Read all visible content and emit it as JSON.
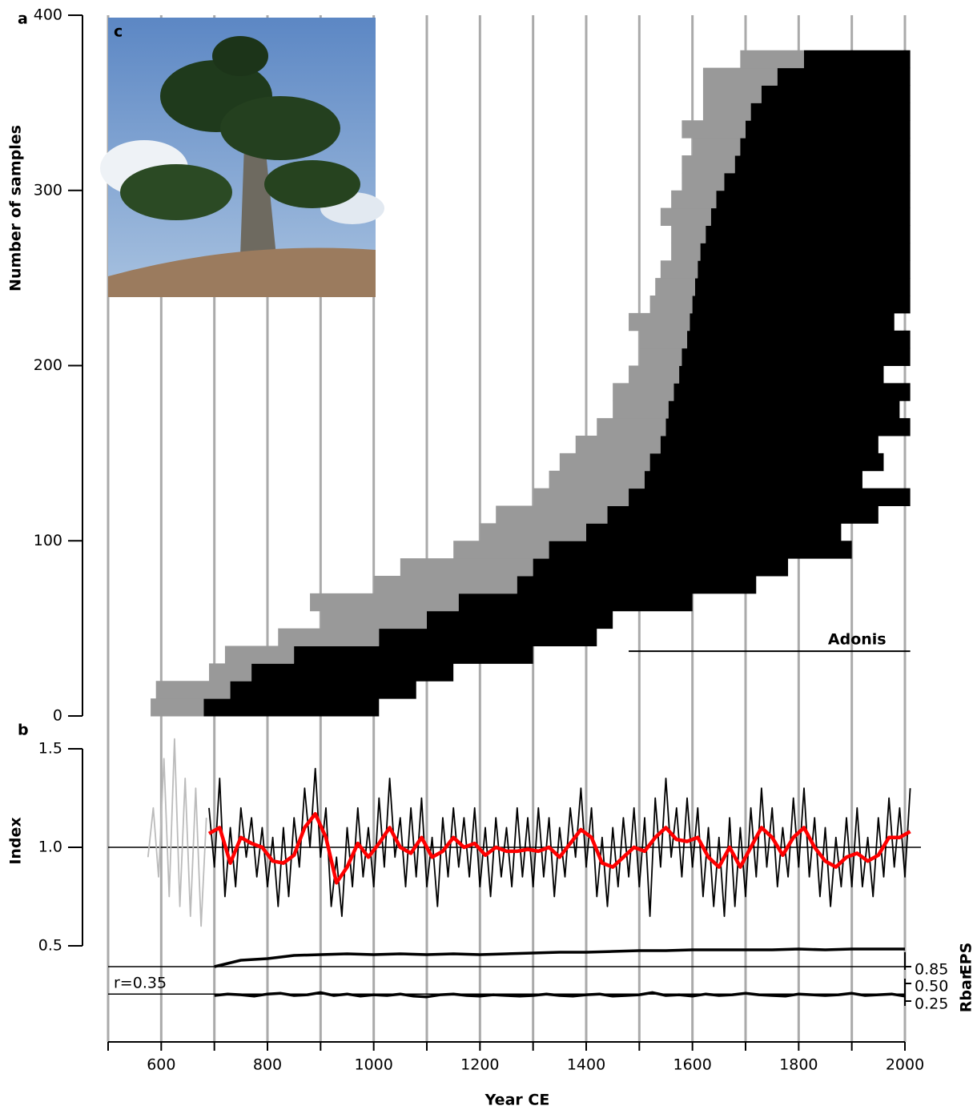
{
  "chart_data": [
    {
      "type": "span",
      "panel_label": "a",
      "ylabel": "Number of samples",
      "ylim": [
        0,
        400
      ],
      "yticks": [
        0,
        100,
        200,
        300,
        400
      ],
      "xlim": [
        500,
        2000
      ],
      "xgrid": [
        500,
        600,
        700,
        800,
        900,
        1000,
        1100,
        1200,
        1300,
        1400,
        1500,
        1600,
        1700,
        1800,
        1900,
        2000
      ],
      "colors": {
        "pith": "#999999",
        "measured": "#000000"
      },
      "rank": [
        5,
        15,
        25,
        35,
        45,
        55,
        65,
        75,
        85,
        95,
        105,
        115,
        125,
        135,
        145,
        155,
        165,
        175,
        185,
        195,
        205,
        215,
        225,
        235,
        245,
        255,
        265,
        275,
        285,
        295,
        305,
        315,
        325,
        335,
        345,
        355,
        365,
        375
      ],
      "gray_start": [
        580,
        590,
        690,
        720,
        820,
        900,
        880,
        1000,
        1050,
        1150,
        1200,
        1230,
        1300,
        1330,
        1350,
        1380,
        1420,
        1450,
        1450,
        1480,
        1500,
        1500,
        1480,
        1520,
        1530,
        1540,
        1560,
        1560,
        1540,
        1560,
        1580,
        1580,
        1600,
        1580,
        1620,
        1620,
        1620,
        1690
      ],
      "black_start": [
        680,
        730,
        770,
        850,
        1010,
        1100,
        1160,
        1270,
        1300,
        1330,
        1400,
        1440,
        1480,
        1510,
        1520,
        1540,
        1550,
        1555,
        1565,
        1575,
        1580,
        1590,
        1595,
        1600,
        1605,
        1610,
        1615,
        1625,
        1635,
        1645,
        1660,
        1680,
        1690,
        1700,
        1710,
        1730,
        1760,
        1810
      ],
      "end": [
        1010,
        1080,
        1150,
        1300,
        1420,
        1450,
        1600,
        1720,
        1780,
        1900,
        1880,
        1950,
        2010,
        1920,
        1960,
        1950,
        2010,
        1990,
        2010,
        1960,
        2010,
        2010,
        1980,
        2010,
        2010,
        2010,
        2010,
        2010,
        2010,
        2010,
        2010,
        2010,
        2010,
        2010,
        2010,
        2010,
        2010,
        2010
      ],
      "annotations": [
        {
          "text": "Adonis",
          "rank": 37,
          "start": 1480,
          "end": 2010
        }
      ],
      "inset_label": "c"
    },
    {
      "type": "line",
      "panel_label": "b",
      "ylabel": "Index",
      "ylim": [
        0.5,
        1.5
      ],
      "yticks": [
        0.5,
        {
          "value": 1,
          "label": "1.0"
        },
        1.5
      ],
      "reference": 1,
      "xlim": [
        500,
        2000
      ],
      "series": [
        {
          "color": "#bbbbbb",
          "x": [
            575,
            585,
            595,
            605,
            615,
            625,
            635,
            645,
            655,
            665,
            675,
            685
          ],
          "values": [
            0.95,
            1.2,
            0.85,
            1.45,
            0.75,
            1.55,
            0.7,
            1.35,
            0.65,
            1.3,
            0.6,
            1.15
          ]
        },
        {
          "color": "#000000",
          "x": [
            690,
            700,
            710,
            720,
            730,
            740,
            750,
            760,
            770,
            780,
            790,
            800,
            810,
            820,
            830,
            840,
            850,
            860,
            870,
            880,
            890,
            900,
            910,
            920,
            930,
            940,
            950,
            960,
            970,
            980,
            990,
            1000,
            1010,
            1020,
            1030,
            1040,
            1050,
            1060,
            1070,
            1080,
            1090,
            1100,
            1110,
            1120,
            1130,
            1140,
            1150,
            1160,
            1170,
            1180,
            1190,
            1200,
            1210,
            1220,
            1230,
            1240,
            1250,
            1260,
            1270,
            1280,
            1290,
            1300,
            1310,
            1320,
            1330,
            1340,
            1350,
            1360,
            1370,
            1380,
            1390,
            1400,
            1410,
            1420,
            1430,
            1440,
            1450,
            1460,
            1470,
            1480,
            1490,
            1500,
            1510,
            1520,
            1530,
            1540,
            1550,
            1560,
            1570,
            1580,
            1590,
            1600,
            1610,
            1620,
            1630,
            1640,
            1650,
            1660,
            1670,
            1680,
            1690,
            1700,
            1710,
            1720,
            1730,
            1740,
            1750,
            1760,
            1770,
            1780,
            1790,
            1800,
            1810,
            1820,
            1830,
            1840,
            1850,
            1860,
            1870,
            1880,
            1890,
            1900,
            1910,
            1920,
            1930,
            1940,
            1950,
            1960,
            1970,
            1980,
            1990,
            2000,
            2010
          ],
          "values": [
            1.2,
            0.9,
            1.35,
            0.75,
            1.1,
            0.8,
            1.2,
            0.95,
            1.15,
            0.85,
            1.1,
            0.8,
            1.05,
            0.7,
            1.1,
            0.75,
            1.15,
            0.9,
            1.3,
            1.0,
            1.4,
            0.95,
            1.2,
            0.7,
            0.95,
            0.65,
            1.1,
            0.8,
            1.2,
            0.85,
            1.1,
            0.8,
            1.25,
            0.9,
            1.35,
            0.95,
            1.15,
            0.8,
            1.2,
            0.85,
            1.25,
            0.8,
            1.05,
            0.7,
            1.15,
            0.85,
            1.2,
            0.9,
            1.15,
            0.85,
            1.2,
            0.8,
            1.1,
            0.75,
            1.15,
            0.85,
            1.1,
            0.8,
            1.2,
            0.85,
            1.15,
            0.8,
            1.2,
            0.85,
            1.15,
            0.75,
            1.1,
            0.85,
            1.2,
            0.95,
            1.3,
            0.9,
            1.2,
            0.75,
            1.05,
            0.7,
            1.1,
            0.8,
            1.15,
            0.85,
            1.2,
            0.8,
            1.15,
            0.65,
            1.25,
            0.9,
            1.35,
            0.95,
            1.2,
            0.85,
            1.25,
            0.9,
            1.2,
            0.75,
            1.1,
            0.7,
            1.05,
            0.65,
            1.15,
            0.7,
            1.1,
            0.75,
            1.2,
            0.85,
            1.3,
            0.9,
            1.2,
            0.8,
            1.1,
            0.85,
            1.25,
            0.9,
            1.3,
            0.85,
            1.15,
            0.75,
            1.1,
            0.7,
            1.05,
            0.8,
            1.15,
            0.8,
            1.2,
            0.8,
            1.05,
            0.75,
            1.15,
            0.85,
            1.25,
            0.9,
            1.2,
            0.85,
            1.3
          ]
        },
        {
          "color": "#ff0000",
          "x": [
            690,
            710,
            730,
            750,
            770,
            790,
            810,
            830,
            850,
            870,
            890,
            910,
            930,
            950,
            970,
            990,
            1010,
            1030,
            1050,
            1070,
            1090,
            1110,
            1130,
            1150,
            1170,
            1190,
            1210,
            1230,
            1250,
            1270,
            1290,
            1310,
            1330,
            1350,
            1370,
            1390,
            1410,
            1430,
            1450,
            1470,
            1490,
            1510,
            1530,
            1550,
            1570,
            1590,
            1610,
            1630,
            1650,
            1670,
            1690,
            1710,
            1730,
            1750,
            1770,
            1790,
            1810,
            1830,
            1850,
            1870,
            1890,
            1910,
            1930,
            1950,
            1970,
            1990,
            2010
          ],
          "values": [
            1.07,
            1.1,
            0.92,
            1.05,
            1.02,
            1.0,
            0.93,
            0.92,
            0.96,
            1.1,
            1.17,
            1.05,
            0.82,
            0.9,
            1.02,
            0.95,
            1.02,
            1.1,
            1.0,
            0.97,
            1.05,
            0.95,
            0.98,
            1.05,
            1.0,
            1.02,
            0.96,
            1.0,
            0.98,
            0.98,
            0.99,
            0.98,
            1.0,
            0.95,
            1.02,
            1.09,
            1.05,
            0.92,
            0.9,
            0.95,
            1.0,
            0.98,
            1.05,
            1.1,
            1.04,
            1.03,
            1.05,
            0.95,
            0.9,
            1.0,
            0.9,
            1.0,
            1.1,
            1.05,
            0.96,
            1.05,
            1.1,
            1.0,
            0.93,
            0.9,
            0.95,
            0.97,
            0.93,
            0.96,
            1.05,
            1.05,
            1.08
          ]
        }
      ]
    },
    {
      "type": "line",
      "ylabel": "EPS",
      "ylim": [
        0.8,
        1.0
      ],
      "yticks": [
        0.85
      ],
      "reference": 0.85,
      "xlim": [
        500,
        2000
      ],
      "series": [
        {
          "color": "#000000",
          "x": [
            700,
            750,
            800,
            850,
            900,
            950,
            1000,
            1050,
            1100,
            1150,
            1200,
            1250,
            1300,
            1350,
            1400,
            1450,
            1500,
            1550,
            1600,
            1650,
            1700,
            1750,
            1800,
            1850,
            1900,
            1950,
            2000
          ],
          "values": [
            0.85,
            0.89,
            0.9,
            0.92,
            0.925,
            0.93,
            0.925,
            0.93,
            0.925,
            0.93,
            0.925,
            0.93,
            0.935,
            0.94,
            0.94,
            0.945,
            0.95,
            0.95,
            0.955,
            0.955,
            0.955,
            0.955,
            0.96,
            0.955,
            0.96,
            0.96,
            0.96
          ]
        }
      ]
    },
    {
      "type": "line",
      "ylabel": "Rbar",
      "ylim": [
        0.25,
        0.5
      ],
      "yticks": [
        0.25,
        {
          "value": 0.5,
          "label": "0.50"
        }
      ],
      "reference": 0.35,
      "reference_label": "r=0.35",
      "xlim": [
        500,
        2000
      ],
      "xlabel": "Year CE",
      "xticks": [
        600,
        800,
        1000,
        1200,
        1400,
        1600,
        1800,
        2000
      ],
      "xminor": [
        500,
        600,
        700,
        800,
        900,
        1000,
        1100,
        1200,
        1300,
        1400,
        1500,
        1600,
        1700,
        1800,
        1900,
        2000
      ],
      "series": [
        {
          "color": "#000000",
          "x": [
            700,
            725,
            750,
            775,
            800,
            825,
            850,
            875,
            900,
            925,
            950,
            975,
            1000,
            1025,
            1050,
            1075,
            1100,
            1125,
            1150,
            1175,
            1200,
            1225,
            1250,
            1275,
            1300,
            1325,
            1350,
            1375,
            1400,
            1425,
            1450,
            1475,
            1500,
            1525,
            1550,
            1575,
            1600,
            1625,
            1650,
            1675,
            1700,
            1725,
            1750,
            1775,
            1800,
            1825,
            1850,
            1875,
            1900,
            1925,
            1950,
            1975,
            2000
          ],
          "values": [
            0.33,
            0.35,
            0.34,
            0.32,
            0.35,
            0.36,
            0.33,
            0.34,
            0.37,
            0.33,
            0.35,
            0.32,
            0.34,
            0.33,
            0.35,
            0.32,
            0.31,
            0.34,
            0.35,
            0.33,
            0.32,
            0.34,
            0.33,
            0.32,
            0.33,
            0.35,
            0.33,
            0.32,
            0.34,
            0.35,
            0.32,
            0.33,
            0.34,
            0.37,
            0.33,
            0.34,
            0.32,
            0.35,
            0.33,
            0.34,
            0.36,
            0.34,
            0.33,
            0.32,
            0.35,
            0.34,
            0.33,
            0.34,
            0.36,
            0.33,
            0.34,
            0.35,
            0.32
          ]
        }
      ]
    }
  ]
}
